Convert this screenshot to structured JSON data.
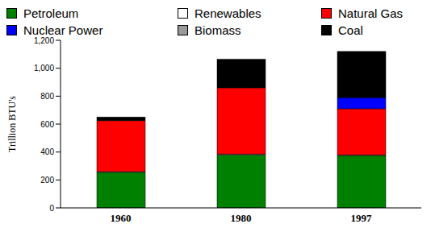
{
  "chart_data": {
    "type": "bar",
    "stacked": true,
    "y_label": "Trillion BTU's",
    "categories": [
      "1960",
      "1980",
      "1997"
    ],
    "series": [
      {
        "name": "Petroleum",
        "color": "#008000",
        "values": [
          255,
          380,
          375
        ]
      },
      {
        "name": "Nuclear Power",
        "color": "#0000ff",
        "values": [
          0,
          0,
          80
        ]
      },
      {
        "name": "Renewables",
        "color": "#ffffff",
        "values": [
          0,
          0,
          0
        ]
      },
      {
        "name": "Biomass",
        "color": "#999999",
        "values": [
          5,
          5,
          5
        ]
      },
      {
        "name": "Natural Gas",
        "color": "#ff0000",
        "values": [
          365,
          475,
          330
        ]
      },
      {
        "name": "Coal",
        "color": "#000000",
        "values": [
          25,
          205,
          330
        ]
      }
    ],
    "ylim": [
      0,
      1200
    ],
    "yticks": [
      0,
      200,
      400,
      600,
      800,
      {
        "value": 1000,
        "label": "1,000"
      },
      {
        "value": 1200,
        "label": "1,200"
      }
    ],
    "grid": false,
    "legend": "top"
  }
}
